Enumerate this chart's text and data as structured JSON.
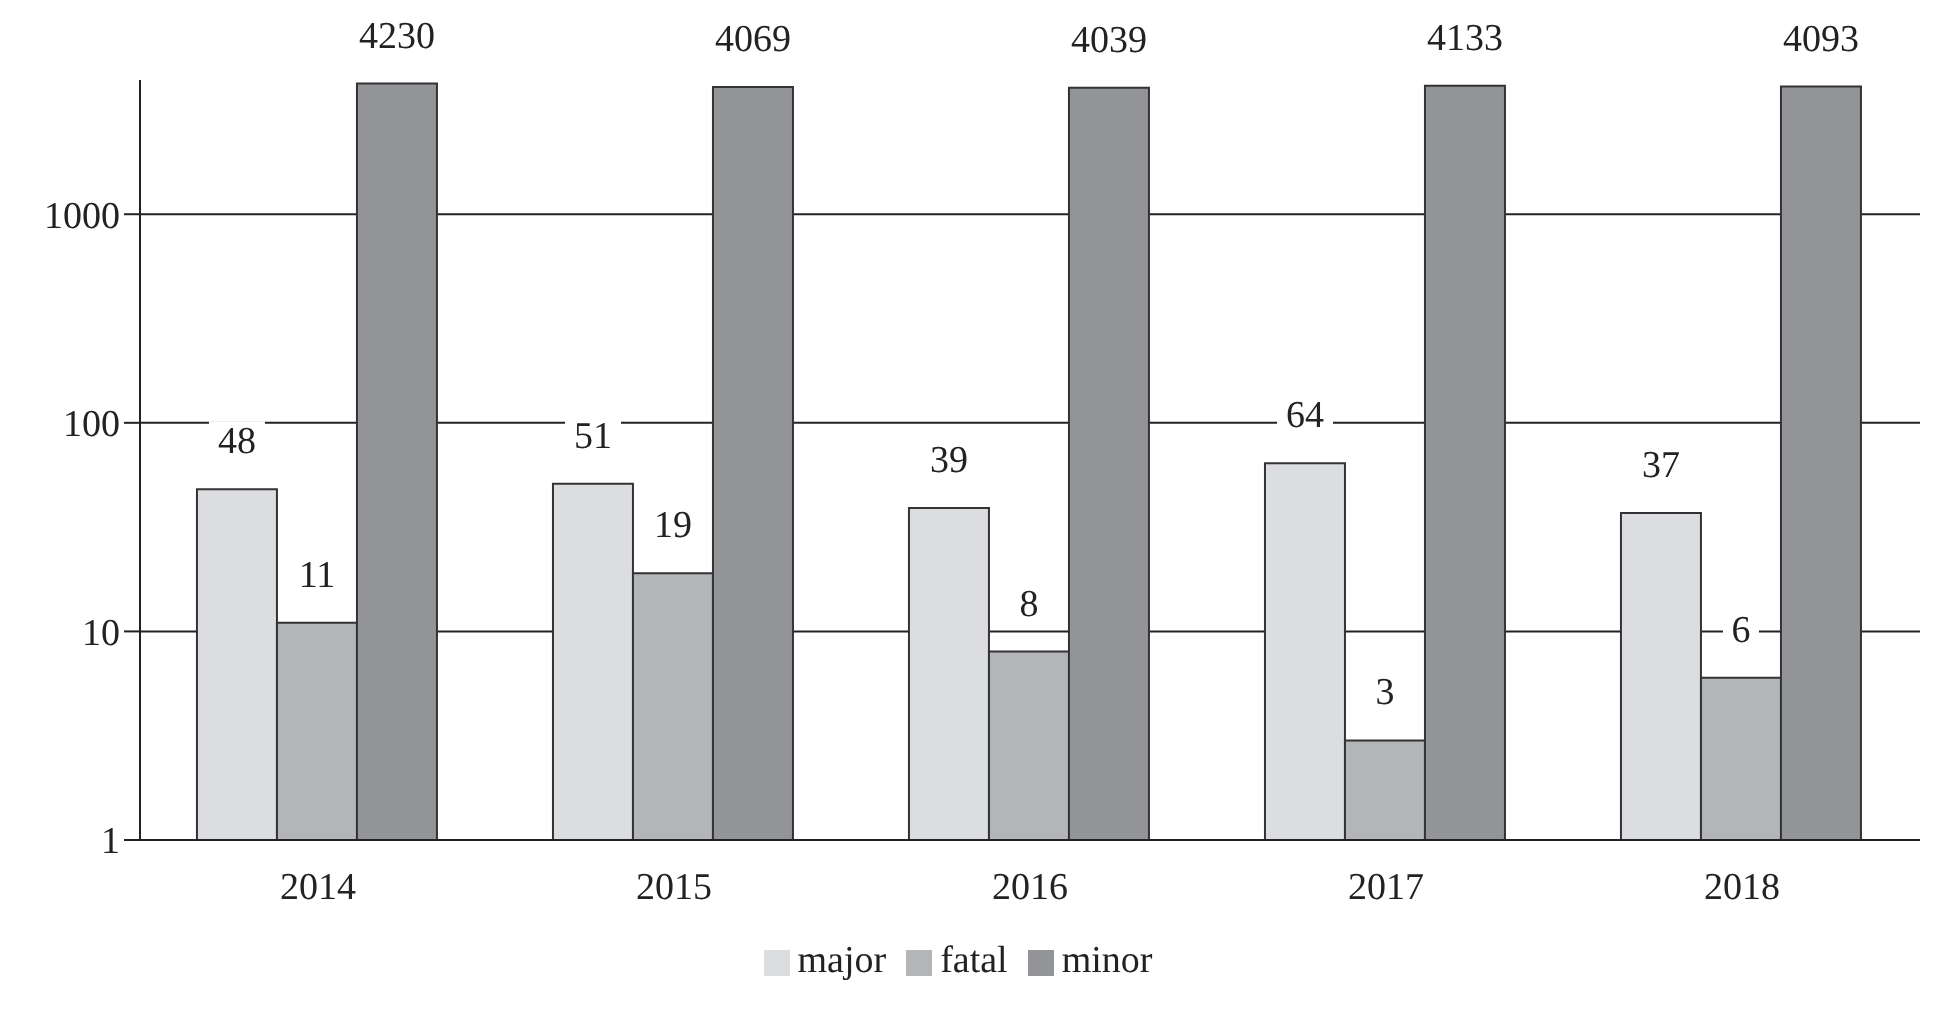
{
  "chart_data": {
    "type": "bar",
    "categories": [
      "2014",
      "2015",
      "2016",
      "2017",
      "2018"
    ],
    "series": [
      {
        "name": "major",
        "color": "#dcdde0",
        "values": [
          48,
          51,
          39,
          64,
          37
        ]
      },
      {
        "name": "fatal",
        "color": "#b4b5b9",
        "values": [
          11,
          19,
          8,
          3,
          6
        ]
      },
      {
        "name": "minor",
        "color": "#939497",
        "values": [
          4230,
          4069,
          4039,
          4133,
          4093
        ]
      }
    ],
    "log": true,
    "ylim": [
      1,
      4400
    ],
    "yticks": [
      1,
      10,
      100,
      1000
    ],
    "grid": "y",
    "legend": "bottom",
    "data_labels": true
  }
}
